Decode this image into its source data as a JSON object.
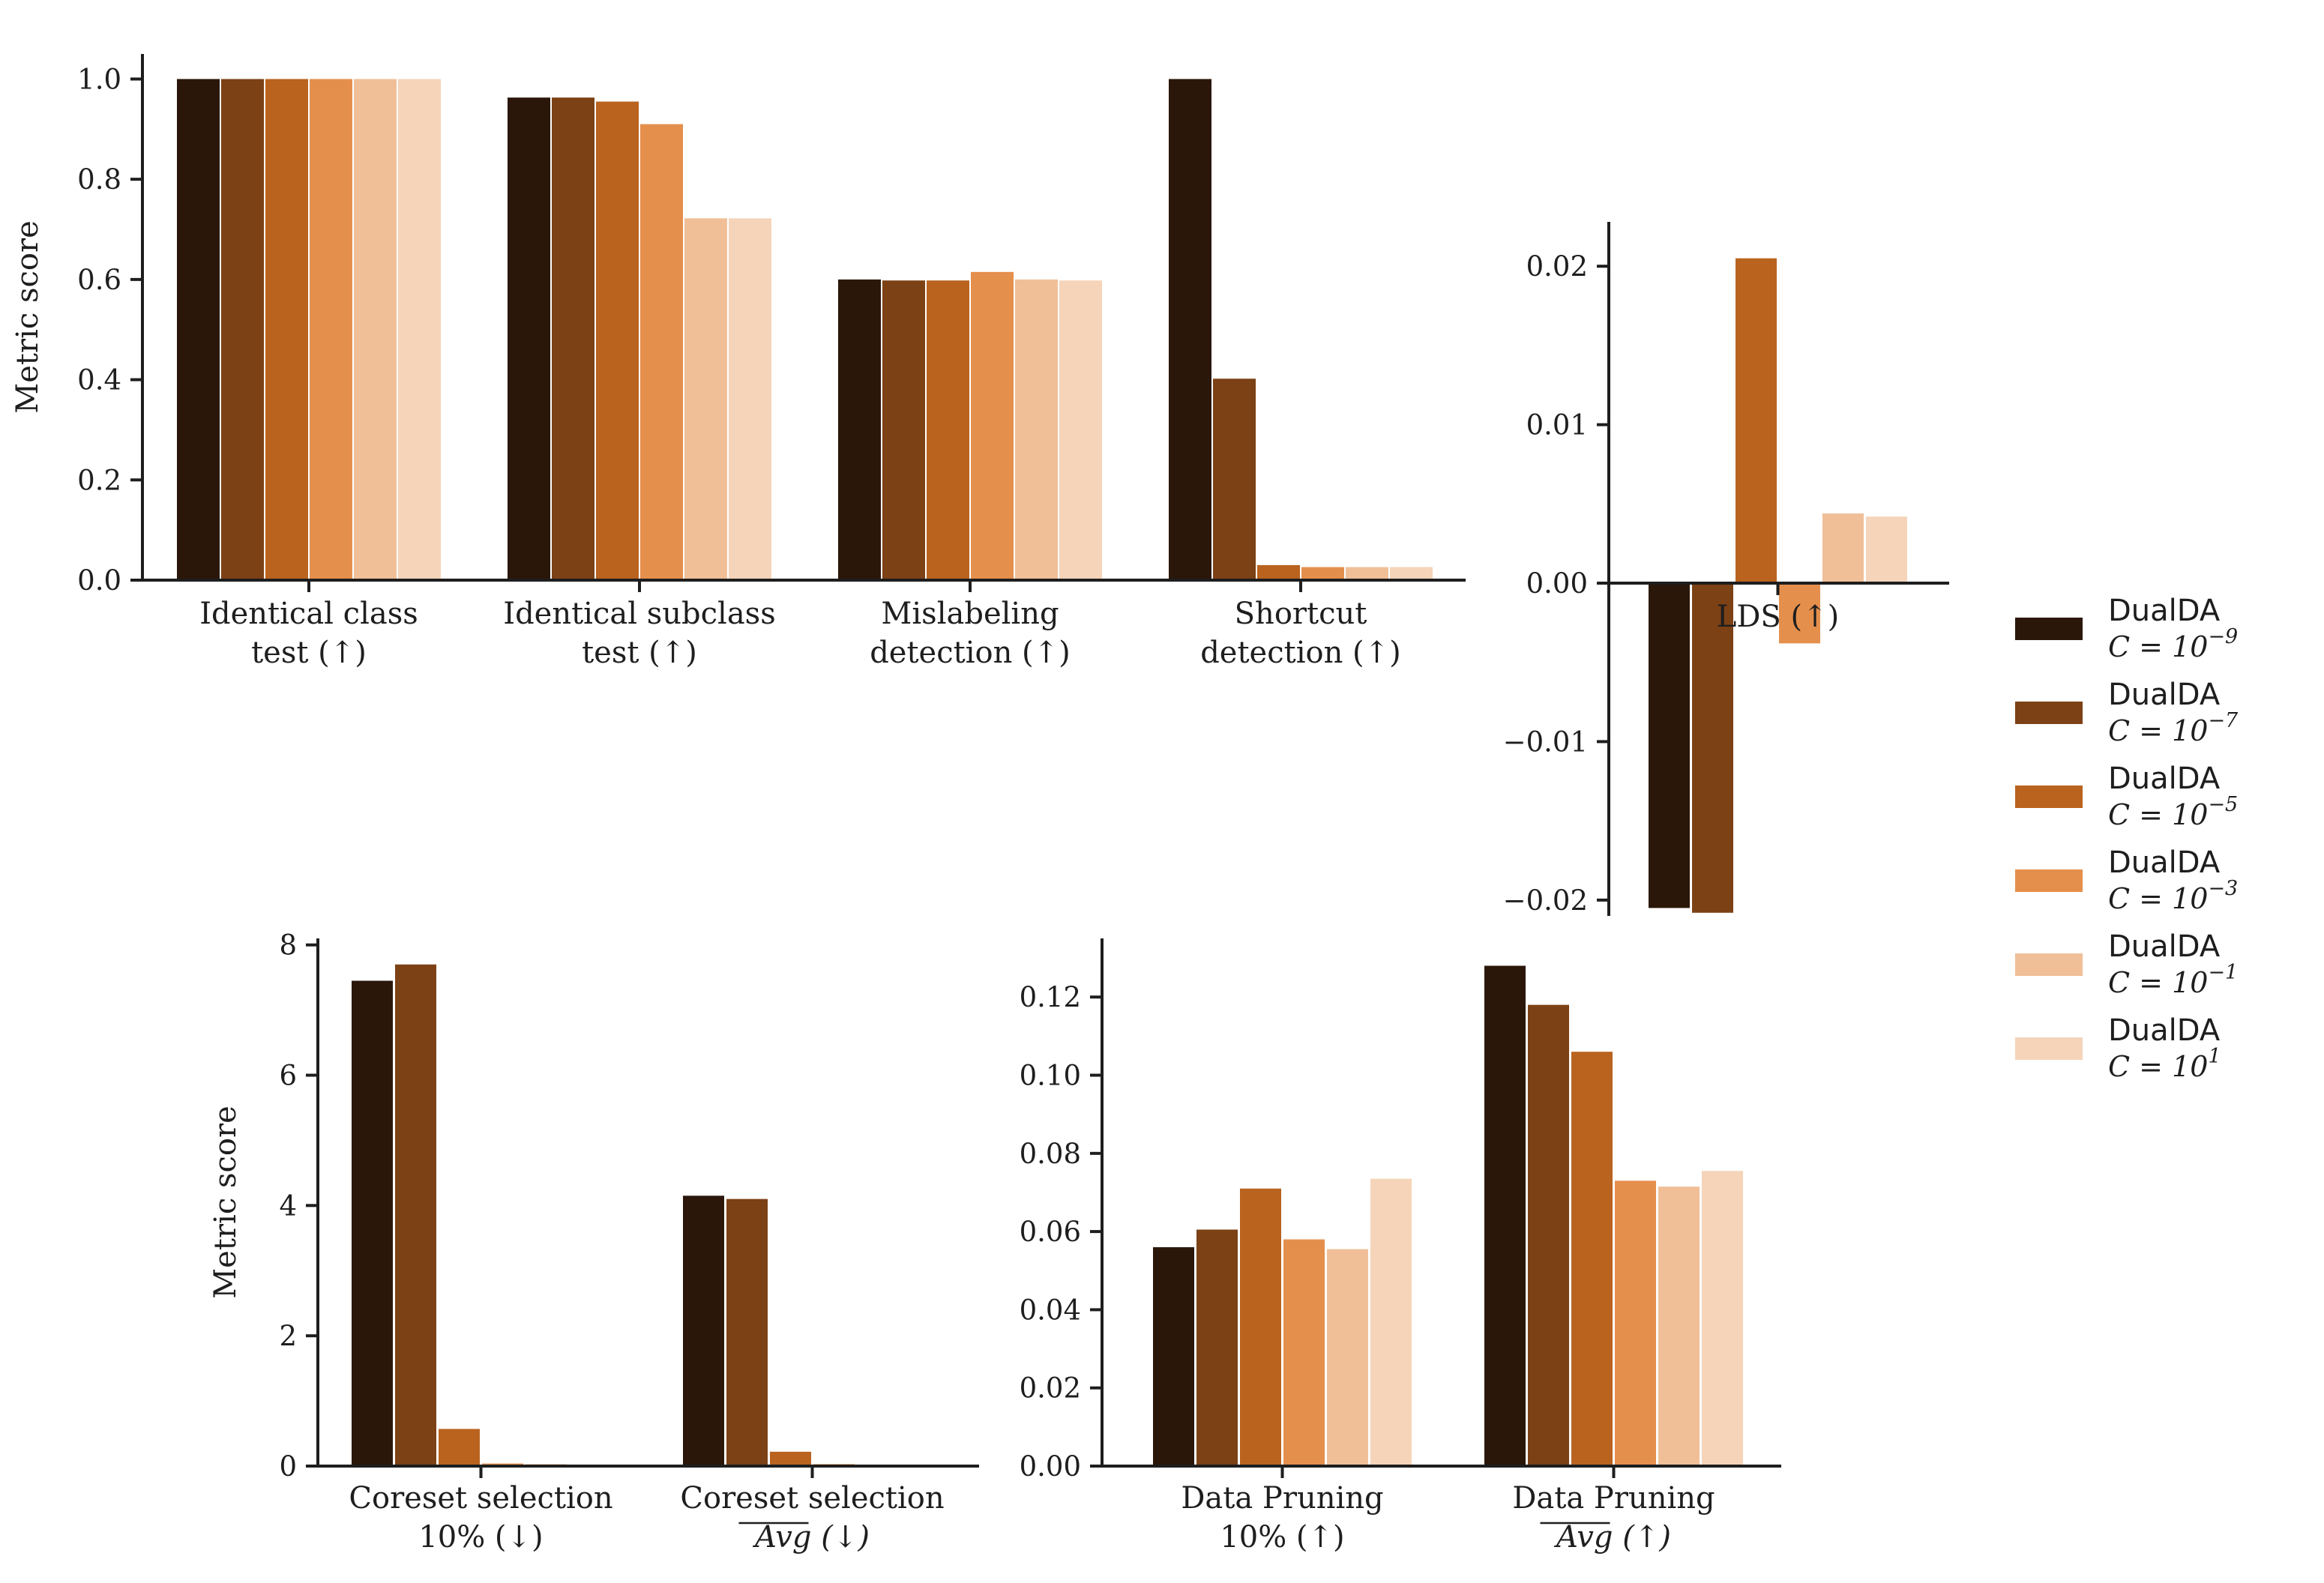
{
  "chart_data": [
    {
      "id": "panel-main",
      "type": "bar",
      "ylabel": "Metric score",
      "ylim": [
        0,
        1.05
      ],
      "yticks": [
        "0.0",
        "0.2",
        "0.4",
        "0.6",
        "0.8",
        "1.0"
      ],
      "ytick_values": [
        0,
        0.2,
        0.4,
        0.6,
        0.8,
        1.0
      ],
      "categories": [
        [
          "Identical class",
          "test (↑)"
        ],
        [
          "Identical subclass",
          "test (↑)"
        ],
        [
          "Mislabeling",
          "detection (↑)"
        ],
        [
          "Shortcut",
          "detection (↑)"
        ]
      ],
      "series_values": [
        [
          1.0,
          0.963,
          0.6,
          1.0
        ],
        [
          1.0,
          0.963,
          0.598,
          0.402
        ],
        [
          1.0,
          0.955,
          0.598,
          0.03
        ],
        [
          1.0,
          0.91,
          0.615,
          0.026
        ],
        [
          1.0,
          0.722,
          0.6,
          0.026
        ],
        [
          1.0,
          0.722,
          0.598,
          0.026
        ]
      ]
    },
    {
      "id": "panel-lds",
      "type": "bar",
      "ylabel": "",
      "ylim": [
        -0.021,
        0.0228
      ],
      "yticks": [
        "−0.02",
        "−0.01",
        "0.00",
        "0.01",
        "0.02"
      ],
      "ytick_values": [
        -0.02,
        -0.01,
        0.0,
        0.01,
        0.02
      ],
      "categories": [
        [
          "LDS (↑)"
        ]
      ],
      "series_values": [
        [
          -0.0205
        ],
        [
          -0.0208
        ],
        [
          0.0205
        ],
        [
          -0.0038
        ],
        [
          0.0044
        ],
        [
          0.0042
        ]
      ]
    },
    {
      "id": "panel-coreset",
      "type": "bar",
      "ylabel": "Metric score",
      "ylim": [
        0,
        8.1
      ],
      "yticks": [
        "0",
        "2",
        "4",
        "6",
        "8"
      ],
      "ytick_values": [
        0,
        2,
        4,
        6,
        8
      ],
      "categories": [
        [
          "Coreset selection",
          "10% (↓)"
        ],
        [
          "Coreset selection",
          "Avg (↓)"
        ]
      ],
      "series_values": [
        [
          7.45,
          4.15
        ],
        [
          7.7,
          4.1
        ],
        [
          0.57,
          0.22
        ],
        [
          0.04,
          0.03
        ],
        [
          0.03,
          0.02
        ],
        [
          0.02,
          0.02
        ]
      ]
    },
    {
      "id": "panel-pruning",
      "type": "bar",
      "ylabel": "",
      "ylim": [
        0,
        0.135
      ],
      "yticks": [
        "0.00",
        "0.02",
        "0.04",
        "0.06",
        "0.08",
        "0.10",
        "0.12"
      ],
      "ytick_values": [
        0,
        0.02,
        0.04,
        0.06,
        0.08,
        0.1,
        0.12
      ],
      "categories": [
        [
          "Data Pruning",
          "10% (↑)"
        ],
        [
          "Data Pruning",
          "Avg (↑)"
        ]
      ],
      "series_values": [
        [
          0.056,
          0.128
        ],
        [
          0.0605,
          0.118
        ],
        [
          0.071,
          0.106
        ],
        [
          0.058,
          0.073
        ],
        [
          0.0555,
          0.0715
        ],
        [
          0.0735,
          0.0755
        ]
      ]
    }
  ],
  "legend": [
    {
      "name": "DualDA",
      "c_label": "C = 10",
      "exp": "−9",
      "color": "#2a1709"
    },
    {
      "name": "DualDA",
      "c_label": "C = 10",
      "exp": "−7",
      "color": "#7c4115"
    },
    {
      "name": "DualDA",
      "c_label": "C = 10",
      "exp": "−5",
      "color": "#b9631f"
    },
    {
      "name": "DualDA",
      "c_label": "C = 10",
      "exp": "−3",
      "color": "#e58f4d"
    },
    {
      "name": "DualDA",
      "c_label": "C = 10",
      "exp": "−1",
      "color": "#f0bf98"
    },
    {
      "name": "DualDA",
      "c_label": "C = 10",
      "exp": "1",
      "color": "#f5d4b9"
    }
  ]
}
